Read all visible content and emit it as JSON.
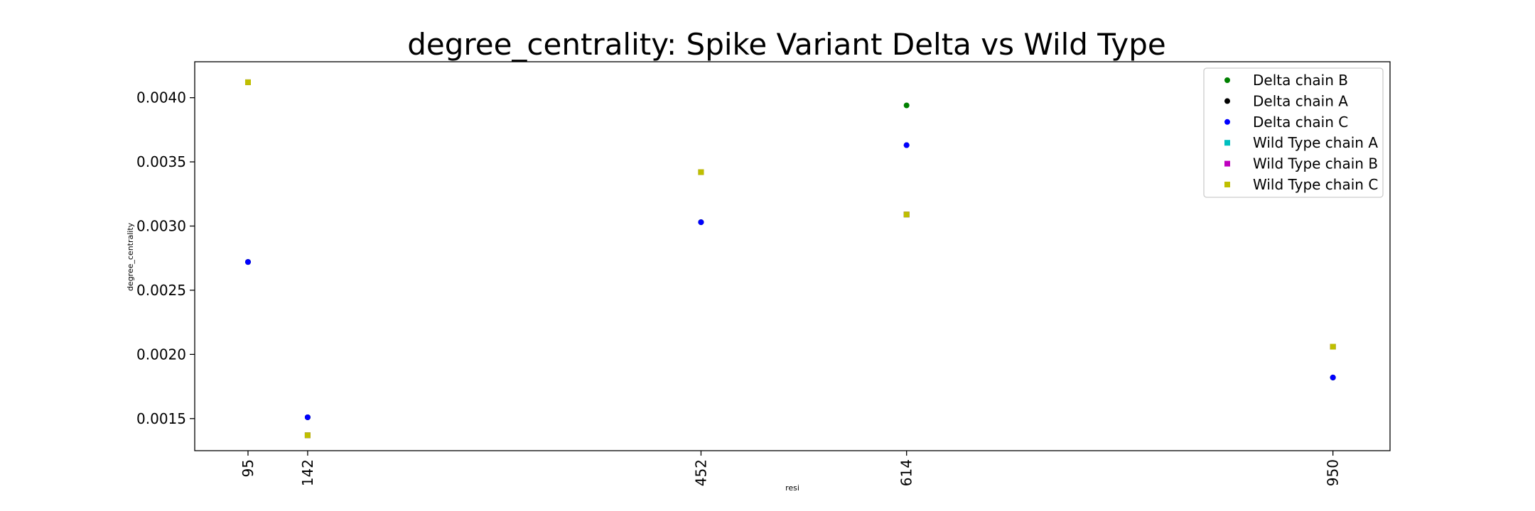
{
  "chart_data": {
    "type": "scatter",
    "title": "degree_centrality: Spike Variant Delta vs Wild Type",
    "xlabel": "resi",
    "ylabel": "degree_centrality",
    "x_ticks": [
      95,
      142,
      452,
      614,
      950
    ],
    "xlim": [
      53,
      995
    ],
    "ylim": [
      0.00125,
      0.00428
    ],
    "y_ticks": [
      0.0015,
      0.002,
      0.0025,
      0.003,
      0.0035,
      0.004
    ],
    "y_tick_labels": [
      "0.0015",
      "0.0020",
      "0.0025",
      "0.0030",
      "0.0035",
      "0.0040"
    ],
    "grid": false,
    "legend_position": "top-right",
    "series": [
      {
        "name": "Delta chain B",
        "color": "#008000",
        "marker": "circle",
        "points": [
          {
            "x": 95,
            "y": 0.00272
          },
          {
            "x": 142,
            "y": 0.00151
          },
          {
            "x": 452,
            "y": 0.00303
          },
          {
            "x": 614,
            "y": 0.00394
          },
          {
            "x": 950,
            "y": 0.00182
          }
        ]
      },
      {
        "name": "Delta chain A",
        "color": "#000000",
        "marker": "circle",
        "points": [
          {
            "x": 95,
            "y": 0.00272
          },
          {
            "x": 142,
            "y": 0.00151
          },
          {
            "x": 452,
            "y": 0.00303
          },
          {
            "x": 614,
            "y": 0.00363
          },
          {
            "x": 950,
            "y": 0.00182
          }
        ]
      },
      {
        "name": "Delta chain C",
        "color": "#0000ff",
        "marker": "circle",
        "points": [
          {
            "x": 95,
            "y": 0.00272
          },
          {
            "x": 142,
            "y": 0.00151
          },
          {
            "x": 452,
            "y": 0.00303
          },
          {
            "x": 614,
            "y": 0.00363
          },
          {
            "x": 950,
            "y": 0.00182
          }
        ]
      },
      {
        "name": "Wild Type chain A",
        "color": "#00bfbf",
        "marker": "square",
        "points": [
          {
            "x": 95,
            "y": 0.00412
          },
          {
            "x": 142,
            "y": 0.00137
          },
          {
            "x": 452,
            "y": 0.00342
          },
          {
            "x": 614,
            "y": 0.00309
          },
          {
            "x": 950,
            "y": 0.00206
          }
        ]
      },
      {
        "name": "Wild Type chain B",
        "color": "#bf00bf",
        "marker": "square",
        "points": [
          {
            "x": 95,
            "y": 0.00412
          },
          {
            "x": 142,
            "y": 0.00137
          },
          {
            "x": 452,
            "y": 0.00342
          },
          {
            "x": 614,
            "y": 0.00309
          },
          {
            "x": 950,
            "y": 0.00206
          }
        ]
      },
      {
        "name": "Wild Type chain C",
        "color": "#bfbf00",
        "marker": "square",
        "points": [
          {
            "x": 95,
            "y": 0.00412
          },
          {
            "x": 142,
            "y": 0.00137
          },
          {
            "x": 452,
            "y": 0.00342
          },
          {
            "x": 614,
            "y": 0.00309
          },
          {
            "x": 950,
            "y": 0.00206
          }
        ]
      }
    ]
  }
}
